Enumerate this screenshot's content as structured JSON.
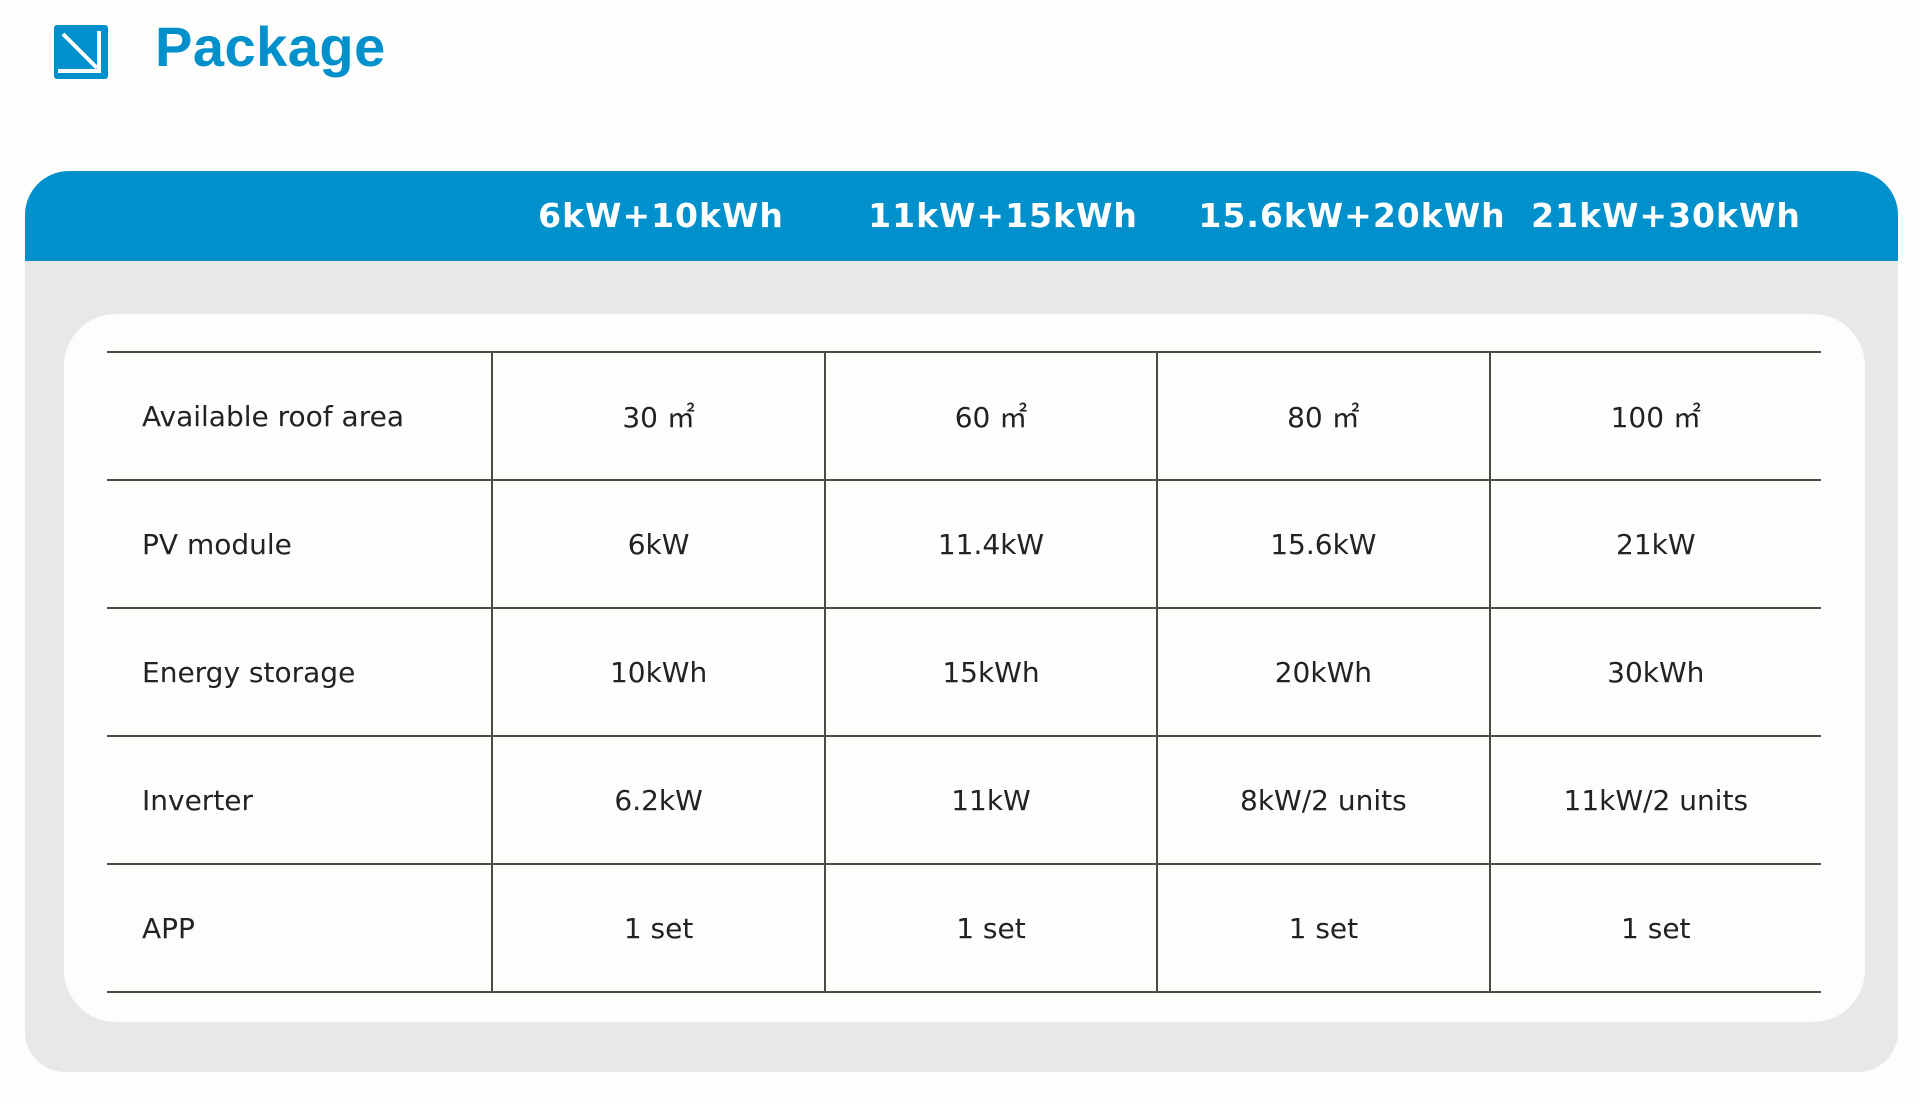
{
  "header": {
    "title": "Package",
    "icon": "arrow-down-right-box-icon",
    "accent_color": "#0090cc"
  },
  "table": {
    "columns": [
      "6kW+10kWh",
      "11kW+15kWh",
      "15.6kW+20kWh",
      "21kW+30kWh"
    ],
    "rows": [
      {
        "label": "Available roof area",
        "values": [
          "30 ㎡",
          "60 ㎡",
          "80 ㎡",
          "100 ㎡"
        ]
      },
      {
        "label": "PV module",
        "values": [
          "6kW",
          "11.4kW",
          "15.6kW",
          "21kW"
        ]
      },
      {
        "label": "Energy storage",
        "values": [
          "10kWh",
          "15kWh",
          "20kWh",
          "30kWh"
        ]
      },
      {
        "label": "Inverter",
        "values": [
          "6.2kW",
          "11kW",
          "8kW/2 units",
          "11kW/2 units"
        ]
      },
      {
        "label": "APP",
        "values": [
          "1 set",
          "1 set",
          "1 set",
          "1 set"
        ]
      }
    ]
  }
}
